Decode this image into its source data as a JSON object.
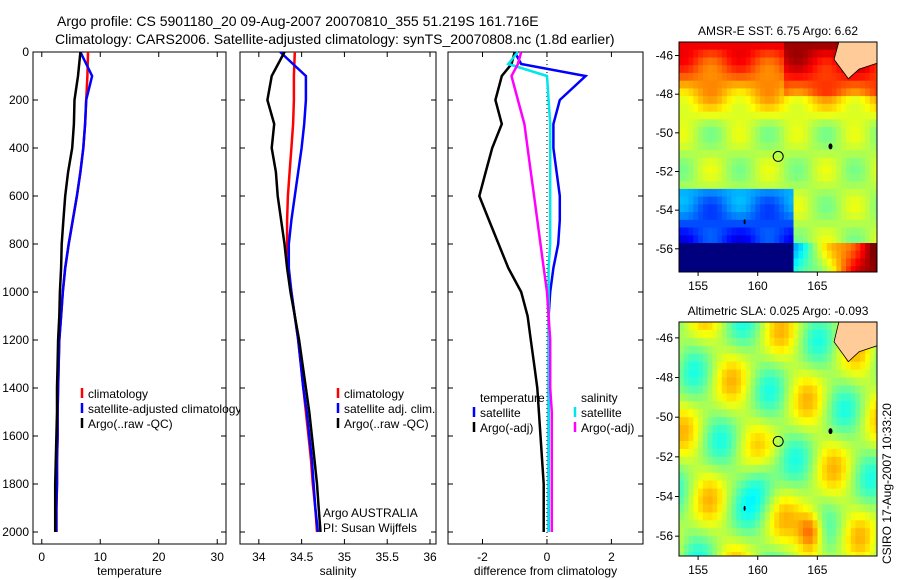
{
  "title_line1": "Argo profile: CS 5901180_20 09-Aug-2007 20070810_355 51.219S 161.716E",
  "title_line2": "Climatology: CARS2006. Satellite-adjusted climatology: synTS_20070808.nc (1.8d earlier)",
  "side_label": "CSIRO 17-Aug-2007 10:33:20",
  "credit": [
    "Argo AUSTRALIA",
    "PI: Susan Wijffels"
  ],
  "colors": {
    "climatology": "#ff0000",
    "satellite": "#0000ff",
    "argo": "#000000",
    "sal_satellite": "#00e5ee",
    "sal_argo": "#ff00ff"
  },
  "chart_data": [
    {
      "type": "line",
      "xlabel": "temperature",
      "ylabel": "",
      "xlim": [
        -1.5,
        31.5
      ],
      "ylim": [
        2050,
        0
      ],
      "xticks": [
        0,
        10,
        20,
        30
      ],
      "yticks": [
        0,
        200,
        400,
        600,
        800,
        1000,
        1200,
        1400,
        1600,
        1800,
        2000
      ],
      "depth": [
        0,
        100,
        200,
        300,
        400,
        500,
        600,
        700,
        800,
        900,
        1000,
        1100,
        1200,
        1300,
        1400,
        1500,
        1600,
        1700,
        1800,
        1900,
        2000
      ],
      "legend": [
        "climatology",
        "satellite-adjusted climatology",
        "Argo(..raw -QC)"
      ],
      "series": [
        {
          "name": "climatology",
          "color_key": "climatology",
          "values": [
            7.9,
            7.8,
            7.6,
            7.4,
            7.1,
            6.6,
            6.0,
            5.3,
            4.6,
            4.0,
            3.6,
            3.3,
            3.0,
            2.9,
            2.8,
            2.7,
            2.7,
            2.6,
            2.6,
            2.5,
            2.5
          ]
        },
        {
          "name": "satellite-adjusted climatology",
          "color_key": "satellite",
          "values": [
            6.6,
            8.6,
            7.6,
            7.4,
            7.1,
            6.6,
            6.0,
            5.3,
            4.6,
            4.0,
            3.6,
            3.3,
            3.0,
            2.9,
            2.8,
            2.7,
            2.7,
            2.6,
            2.6,
            2.5,
            2.5
          ]
        },
        {
          "name": "Argo(..raw -QC)",
          "color_key": "argo",
          "values": [
            6.6,
            6.2,
            5.6,
            5.5,
            5.2,
            4.5,
            4.0,
            3.7,
            3.4,
            3.3,
            3.1,
            3.0,
            2.8,
            2.7,
            2.6,
            2.6,
            2.5,
            2.4,
            2.3,
            2.3,
            2.3
          ]
        }
      ]
    },
    {
      "type": "line",
      "xlabel": "salinity",
      "ylabel": "",
      "xlim": [
        33.78,
        36.07
      ],
      "ylim": [
        2050,
        0
      ],
      "xticks": [
        34,
        34.5,
        35,
        35.5,
        36
      ],
      "depth": [
        0,
        100,
        200,
        300,
        400,
        500,
        600,
        700,
        800,
        900,
        1000,
        1100,
        1200,
        1300,
        1400,
        1500,
        1600,
        1700,
        1800,
        1900,
        2000
      ],
      "legend": [
        "climatology",
        "satellite adj. clim.",
        "Argo(..raw -QC)"
      ],
      "series": [
        {
          "name": "climatology",
          "color_key": "climatology",
          "values": [
            34.42,
            34.41,
            34.41,
            34.4,
            34.38,
            34.36,
            34.34,
            34.33,
            34.33,
            34.34,
            34.38,
            34.42,
            34.46,
            34.49,
            34.52,
            34.55,
            34.58,
            34.61,
            34.63,
            34.66,
            34.68
          ]
        },
        {
          "name": "satellite adj. clim.",
          "color_key": "satellite",
          "values": [
            34.25,
            34.55,
            34.55,
            34.53,
            34.5,
            34.46,
            34.42,
            34.38,
            34.35,
            34.35,
            34.38,
            34.42,
            34.46,
            34.49,
            34.52,
            34.56,
            34.59,
            34.62,
            34.64,
            34.66,
            34.69
          ]
        },
        {
          "name": "Argo(..raw -QC)",
          "color_key": "argo",
          "values": [
            34.3,
            34.15,
            34.1,
            34.18,
            34.15,
            34.2,
            34.22,
            34.26,
            34.3,
            34.33,
            34.37,
            34.42,
            34.47,
            34.51,
            34.55,
            34.59,
            34.62,
            34.65,
            34.68,
            34.7,
            34.72
          ]
        }
      ]
    },
    {
      "type": "line",
      "xlabel": "difference from climatology",
      "ylabel": "",
      "xlim": [
        -3.07,
        2.98
      ],
      "ylim": [
        2050,
        0
      ],
      "xticks": [
        -2,
        0,
        2
      ],
      "depth": [
        0,
        50,
        100,
        200,
        300,
        400,
        500,
        600,
        700,
        800,
        900,
        1000,
        1100,
        1200,
        1300,
        1400,
        1500,
        1600,
        1700,
        1800,
        1900,
        2000
      ],
      "legend_groups": [
        {
          "title": "temperature",
          "items": [
            "satellite",
            "Argo(-adj)"
          ]
        },
        {
          "title": "salinity",
          "items": [
            "satellite",
            "Argo(-adj)"
          ]
        }
      ],
      "series": [
        {
          "name": "temperature satellite",
          "color_key": "satellite",
          "values": [
            -1.0,
            -0.8,
            1.2,
            0.4,
            0.2,
            0.2,
            0.3,
            0.4,
            0.4,
            0.35,
            0.2,
            0.1,
            0.05,
            0.05,
            0.05,
            0.05,
            0.05,
            0.05,
            0.05,
            0.05,
            0.05,
            0.05
          ]
        },
        {
          "name": "temperature Argo(-adj)",
          "color_key": "argo",
          "values": [
            -1.0,
            -1.1,
            -1.4,
            -1.6,
            -1.4,
            -1.7,
            -1.9,
            -2.1,
            -1.8,
            -1.5,
            -1.2,
            -0.8,
            -0.6,
            -0.5,
            -0.4,
            -0.3,
            -0.25,
            -0.2,
            -0.15,
            -0.1,
            -0.1,
            -0.1
          ]
        },
        {
          "name": "salinity satellite",
          "color_key": "sal_satellite",
          "values": [
            -0.9,
            -1.2,
            0.0,
            0.05,
            0.1,
            0.1,
            0.1,
            0.1,
            0.1,
            0.1,
            0.05,
            0.05,
            0.05,
            0.05,
            0.05,
            0.05,
            0.05,
            0.05,
            0.05,
            0.05,
            0.05,
            0.05
          ]
        },
        {
          "name": "salinity Argo(-adj)",
          "color_key": "sal_argo",
          "values": [
            -0.8,
            -0.9,
            -1.1,
            -0.9,
            -0.7,
            -0.6,
            -0.5,
            -0.4,
            -0.3,
            -0.2,
            -0.1,
            0.0,
            0.05,
            0.1,
            0.1,
            0.1,
            0.15,
            0.15,
            0.15,
            0.15,
            0.15,
            0.15
          ]
        }
      ]
    },
    {
      "type": "heatmap",
      "title": "AMSR-E SST: 6.75 Argo: 6.62",
      "xlim": [
        153.4,
        170.0
      ],
      "ylim": [
        -57.2,
        -45.3
      ],
      "xticks": [
        155,
        160,
        165
      ],
      "yticks": [
        -46,
        -48,
        -50,
        -52,
        -54,
        -56
      ],
      "marker": {
        "lon": 161.716,
        "lat": -51.219
      }
    },
    {
      "type": "heatmap",
      "title": "Altimetric SLA: 0.025 Argo: -0.093",
      "xlim": [
        153.4,
        170.0
      ],
      "ylim": [
        -57.0,
        -45.2
      ],
      "xticks": [
        155,
        160,
        165
      ],
      "yticks": [
        -46,
        -48,
        -50,
        -52,
        -54,
        -56
      ],
      "marker": {
        "lon": 161.716,
        "lat": -51.219
      }
    }
  ]
}
